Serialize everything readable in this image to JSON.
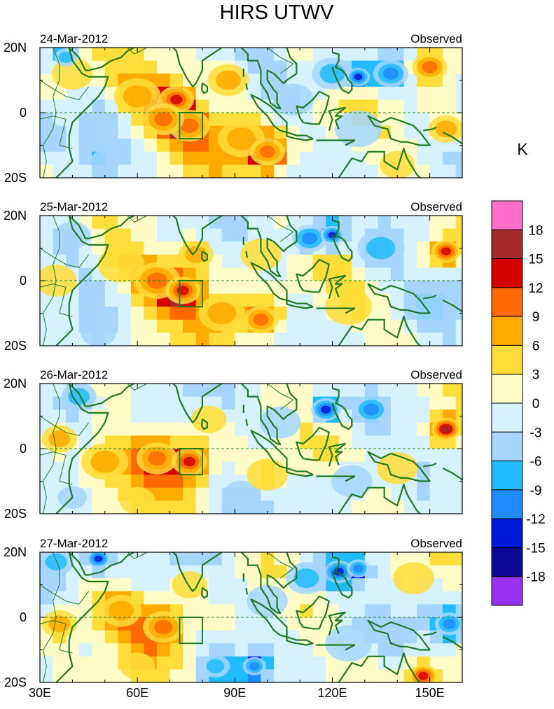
{
  "chart_data": {
    "type": "heatmap",
    "title": "HIRS UTWV",
    "colorbar": {
      "unit_label": "K",
      "levels": [
        "18",
        "15",
        "12",
        "9",
        "6",
        "3",
        "0",
        "-3",
        "-6",
        "-9",
        "-12",
        "-15",
        "-18"
      ],
      "colors": [
        "#ff6ec8",
        "#a52a2a",
        "#d40000",
        "#ff6a00",
        "#ffaa00",
        "#ffdd3a",
        "#fffcc8",
        "#d6f2ff",
        "#a6d6ff",
        "#22bbff",
        "#1e8cff",
        "#0018d8",
        "#0a0a96",
        "#9632f0"
      ]
    },
    "x_axis": {
      "range": [
        30,
        160
      ],
      "ticks": [
        30,
        60,
        90,
        120,
        150
      ],
      "tick_labels": [
        "30E",
        "60E",
        "90E",
        "120E",
        "150E"
      ]
    },
    "y_axis": {
      "range": [
        -20,
        20
      ],
      "ticks": [
        20,
        0,
        -20
      ],
      "tick_labels": [
        "20N",
        "0",
        "20S"
      ]
    },
    "box_region": {
      "lon": [
        73,
        80
      ],
      "lat": [
        -8,
        0
      ]
    },
    "panels": [
      {
        "date": "24-Mar-2012",
        "label": "Observed",
        "features": [
          {
            "lon": 30,
            "lat": -5,
            "v": -3,
            "r": 6
          },
          {
            "lon": 40,
            "lat": 12,
            "v": 4,
            "r": 7
          },
          {
            "lon": 38,
            "lat": 17,
            "v": -8,
            "r": 4
          },
          {
            "lon": 60,
            "lat": 5,
            "v": 7,
            "r": 8
          },
          {
            "lon": 72,
            "lat": 4,
            "v": 13,
            "r": 6
          },
          {
            "lon": 76,
            "lat": -4,
            "v": 11,
            "r": 7
          },
          {
            "lon": 68,
            "lat": -2,
            "v": 9,
            "r": 7
          },
          {
            "lon": 88,
            "lat": 10,
            "v": 6,
            "r": 7
          },
          {
            "lon": 92,
            "lat": -8,
            "v": 8,
            "r": 8
          },
          {
            "lon": 100,
            "lat": -14,
            "v": 16,
            "r": 3
          },
          {
            "lon": 100,
            "lat": -12,
            "v": 11,
            "r": 6
          },
          {
            "lon": 108,
            "lat": 4,
            "v": -2,
            "r": 7
          },
          {
            "lon": 120,
            "lat": 12,
            "v": -6,
            "r": 7
          },
          {
            "lon": 128,
            "lat": 11,
            "v": -12,
            "r": 4
          },
          {
            "lon": 138,
            "lat": 12,
            "v": -9,
            "r": 6
          },
          {
            "lon": 128,
            "lat": -5,
            "v": -2,
            "r": 8
          },
          {
            "lon": 150,
            "lat": 14,
            "v": 9,
            "r": 6
          },
          {
            "lon": 155,
            "lat": -5,
            "v": 6,
            "r": 6
          },
          {
            "lon": 50,
            "lat": -15,
            "v": -5,
            "r": 5
          },
          {
            "lon": 140,
            "lat": -16,
            "v": 1,
            "r": 6
          }
        ]
      },
      {
        "date": "25-Mar-2012",
        "label": "Observed",
        "features": [
          {
            "lon": 35,
            "lat": 0,
            "v": 2,
            "r": 7
          },
          {
            "lon": 40,
            "lat": 14,
            "v": -4,
            "r": 6
          },
          {
            "lon": 55,
            "lat": 5,
            "v": 4,
            "r": 8
          },
          {
            "lon": 66,
            "lat": 0,
            "v": 9,
            "r": 8
          },
          {
            "lon": 74,
            "lat": -3,
            "v": 12,
            "r": 6
          },
          {
            "lon": 78,
            "lat": 8,
            "v": 7,
            "r": 6
          },
          {
            "lon": 86,
            "lat": -10,
            "v": 6,
            "r": 8
          },
          {
            "lon": 98,
            "lat": -12,
            "v": 10,
            "r": 6
          },
          {
            "lon": 98,
            "lat": 8,
            "v": 2,
            "r": 7
          },
          {
            "lon": 113,
            "lat": 13,
            "v": -9,
            "r": 6
          },
          {
            "lon": 120,
            "lat": 14,
            "v": -14,
            "r": 4
          },
          {
            "lon": 135,
            "lat": 10,
            "v": -8,
            "r": 8
          },
          {
            "lon": 155,
            "lat": 9,
            "v": 14,
            "r": 5
          },
          {
            "lon": 125,
            "lat": -8,
            "v": 1,
            "r": 8
          },
          {
            "lon": 150,
            "lat": -8,
            "v": -3,
            "r": 7
          },
          {
            "lon": 48,
            "lat": -16,
            "v": -4,
            "r": 6
          }
        ]
      },
      {
        "date": "26-Mar-2012",
        "label": "Observed",
        "features": [
          {
            "lon": 36,
            "lat": 3,
            "v": 7,
            "r": 6
          },
          {
            "lon": 42,
            "lat": 16,
            "v": -8,
            "r": 6
          },
          {
            "lon": 50,
            "lat": -4,
            "v": 6,
            "r": 8
          },
          {
            "lon": 66,
            "lat": -3,
            "v": 11,
            "r": 7
          },
          {
            "lon": 76,
            "lat": -4,
            "v": 12,
            "r": 6
          },
          {
            "lon": 82,
            "lat": 9,
            "v": 4,
            "r": 6
          },
          {
            "lon": 92,
            "lat": -14,
            "v": -4,
            "r": 6
          },
          {
            "lon": 100,
            "lat": -8,
            "v": 5,
            "r": 7
          },
          {
            "lon": 104,
            "lat": 8,
            "v": -3,
            "r": 7
          },
          {
            "lon": 118,
            "lat": 12,
            "v": -12,
            "r": 5
          },
          {
            "lon": 132,
            "lat": 12,
            "v": -10,
            "r": 6
          },
          {
            "lon": 155,
            "lat": 6,
            "v": 16,
            "r": 5
          },
          {
            "lon": 140,
            "lat": -6,
            "v": 2,
            "r": 7
          },
          {
            "lon": 126,
            "lat": -10,
            "v": -4,
            "r": 7
          },
          {
            "lon": 60,
            "lat": -16,
            "v": 3,
            "r": 6
          },
          {
            "lon": 40,
            "lat": -15,
            "v": -3,
            "r": 5
          }
        ]
      },
      {
        "date": "27-Mar-2012",
        "label": "Observed",
        "features": [
          {
            "lon": 35,
            "lat": 17,
            "v": -6,
            "r": 6
          },
          {
            "lon": 48,
            "lat": 18,
            "v": -14,
            "r": 4
          },
          {
            "lon": 36,
            "lat": -2,
            "v": 8,
            "r": 6
          },
          {
            "lon": 55,
            "lat": 2,
            "v": 7,
            "r": 7
          },
          {
            "lon": 68,
            "lat": -3,
            "v": 10,
            "r": 7
          },
          {
            "lon": 76,
            "lat": 10,
            "v": 3,
            "r": 6
          },
          {
            "lon": 84,
            "lat": -15,
            "v": -6,
            "r": 5
          },
          {
            "lon": 96,
            "lat": -15,
            "v": -10,
            "r": 4
          },
          {
            "lon": 100,
            "lat": 5,
            "v": -2,
            "r": 7
          },
          {
            "lon": 112,
            "lat": 12,
            "v": -6,
            "r": 7
          },
          {
            "lon": 122,
            "lat": 14,
            "v": -14,
            "r": 5
          },
          {
            "lon": 128,
            "lat": 15,
            "v": -11,
            "r": 4
          },
          {
            "lon": 145,
            "lat": 12,
            "v": 3,
            "r": 7
          },
          {
            "lon": 156,
            "lat": -2,
            "v": -10,
            "r": 5
          },
          {
            "lon": 148,
            "lat": -18,
            "v": 13,
            "r": 5
          },
          {
            "lon": 125,
            "lat": -8,
            "v": -2,
            "r": 8
          },
          {
            "lon": 60,
            "lat": -15,
            "v": 5,
            "r": 6
          }
        ]
      }
    ]
  },
  "coast_lines": [
    {
      "name": "africa-east-coast",
      "pts": [
        [
          39,
          20
        ],
        [
          40,
          16
        ],
        [
          43,
          12
        ],
        [
          45,
          11
        ],
        [
          51,
          11
        ],
        [
          50,
          8
        ],
        [
          48,
          5
        ],
        [
          45,
          2
        ],
        [
          42,
          -1
        ],
        [
          40,
          -3
        ],
        [
          39,
          -7
        ],
        [
          39,
          -11
        ],
        [
          40,
          -15
        ],
        [
          37,
          -18
        ],
        [
          35,
          -20
        ]
      ]
    },
    {
      "name": "arabia-coast",
      "pts": [
        [
          39,
          20
        ],
        [
          42,
          17
        ],
        [
          44,
          13
        ],
        [
          45,
          13
        ],
        [
          49,
          14
        ],
        [
          52,
          16
        ],
        [
          55,
          17
        ],
        [
          57,
          19
        ],
        [
          59,
          20
        ]
      ]
    },
    {
      "name": "africa-border-a",
      "pts": [
        [
          34,
          20
        ],
        [
          36,
          15
        ],
        [
          36,
          10
        ],
        [
          34,
          5
        ],
        [
          35,
          0
        ],
        [
          34,
          -5
        ],
        [
          31,
          -10
        ],
        [
          32,
          -15
        ],
        [
          31,
          -20
        ]
      ]
    },
    {
      "name": "africa-border-b",
      "pts": [
        [
          30,
          10
        ],
        [
          33,
          8
        ],
        [
          38,
          5
        ],
        [
          42,
          4
        ],
        [
          45,
          8
        ]
      ]
    },
    {
      "name": "africa-border-c",
      "pts": [
        [
          30,
          -2
        ],
        [
          34,
          -1
        ],
        [
          38,
          -2
        ],
        [
          36,
          -10
        ],
        [
          40,
          -11
        ]
      ]
    },
    {
      "name": "india-coast",
      "pts": [
        [
          68,
          20
        ],
        [
          70,
          21
        ],
        [
          72,
          19
        ],
        [
          73,
          15
        ],
        [
          75,
          11
        ],
        [
          77,
          8
        ],
        [
          78,
          9
        ],
        [
          80,
          13
        ],
        [
          80,
          16
        ],
        [
          83,
          18
        ],
        [
          86,
          20
        ]
      ]
    },
    {
      "name": "sri-lanka",
      "closed": true,
      "pts": [
        [
          80,
          9
        ],
        [
          81.5,
          8
        ],
        [
          81.5,
          6.5
        ],
        [
          80.5,
          6
        ],
        [
          79.8,
          7
        ]
      ]
    },
    {
      "name": "myanmar-malay-coast",
      "pts": [
        [
          92,
          20
        ],
        [
          94,
          18
        ],
        [
          94,
          16
        ],
        [
          97,
          16
        ],
        [
          98,
          13
        ],
        [
          98,
          9
        ],
        [
          100,
          6
        ],
        [
          101,
          3
        ],
        [
          103,
          1.5
        ],
        [
          104,
          1.3
        ],
        [
          103,
          3
        ],
        [
          103,
          6
        ],
        [
          102,
          7
        ],
        [
          100,
          10
        ],
        [
          100,
          13
        ],
        [
          102,
          12
        ],
        [
          105,
          9
        ],
        [
          106,
          10
        ],
        [
          109,
          12
        ],
        [
          109,
          15
        ],
        [
          107,
          17
        ],
        [
          106,
          20
        ]
      ]
    },
    {
      "name": "sumatra",
      "closed": true,
      "pts": [
        [
          95,
          5.5
        ],
        [
          98,
          4
        ],
        [
          101,
          2
        ],
        [
          104,
          -1
        ],
        [
          106,
          -3
        ],
        [
          106,
          -6
        ],
        [
          104,
          -5.5
        ],
        [
          102,
          -4
        ],
        [
          100,
          -1
        ],
        [
          97,
          2
        ]
      ]
    },
    {
      "name": "java",
      "closed": true,
      "pts": [
        [
          106,
          -6
        ],
        [
          109,
          -7
        ],
        [
          112,
          -7
        ],
        [
          114,
          -8
        ],
        [
          112,
          -8.5
        ],
        [
          108,
          -7.8
        ],
        [
          106,
          -7.2
        ]
      ]
    },
    {
      "name": "borneo",
      "closed": true,
      "pts": [
        [
          109,
          2
        ],
        [
          111,
          1.5
        ],
        [
          114,
          4
        ],
        [
          116,
          6.5
        ],
        [
          119,
          5
        ],
        [
          118,
          1
        ],
        [
          117,
          -1
        ],
        [
          116,
          -3.5
        ],
        [
          114,
          -3.5
        ],
        [
          111,
          -3
        ],
        [
          110,
          -1.5
        ]
      ]
    },
    {
      "name": "sulawesi",
      "pts": [
        [
          119,
          -5.5
        ],
        [
          120,
          -2
        ],
        [
          119,
          0.5
        ],
        [
          121,
          1
        ],
        [
          124,
          1.5
        ],
        [
          122,
          0
        ],
        [
          121,
          -1
        ],
        [
          123,
          -1
        ],
        [
          121,
          -2.5
        ],
        [
          122,
          -5
        ]
      ]
    },
    {
      "name": "philippines",
      "pts": [
        [
          120,
          18.5
        ],
        [
          122,
          18
        ],
        [
          122,
          16
        ],
        [
          121,
          14
        ],
        [
          123,
          13
        ],
        [
          124,
          12
        ],
        [
          125,
          10
        ],
        [
          126,
          9
        ],
        [
          126,
          7
        ],
        [
          125,
          6
        ],
        [
          123,
          7
        ],
        [
          122,
          9
        ],
        [
          121,
          11
        ],
        [
          120,
          14
        ]
      ]
    },
    {
      "name": "new-guinea",
      "closed": true,
      "pts": [
        [
          131,
          -1
        ],
        [
          135,
          -3
        ],
        [
          138,
          -1.5
        ],
        [
          141,
          -2.5
        ],
        [
          145,
          -4
        ],
        [
          147,
          -6
        ],
        [
          150,
          -10
        ],
        [
          147,
          -10
        ],
        [
          143,
          -9
        ],
        [
          141,
          -9
        ],
        [
          138,
          -8
        ],
        [
          137,
          -5
        ],
        [
          133,
          -4
        ]
      ]
    },
    {
      "name": "australia-north",
      "pts": [
        [
          122,
          -20
        ],
        [
          126,
          -14
        ],
        [
          129,
          -15
        ],
        [
          131,
          -12
        ],
        [
          136,
          -12
        ],
        [
          136,
          -15
        ],
        [
          140,
          -17.5
        ],
        [
          142,
          -11
        ],
        [
          143,
          -14
        ],
        [
          146,
          -19
        ],
        [
          147,
          -20
        ]
      ]
    },
    {
      "name": "lesser-sunda",
      "pts": [
        [
          115,
          -8.5
        ],
        [
          119,
          -8.5
        ],
        [
          123,
          -8.5
        ],
        [
          127,
          -8.5
        ]
      ]
    },
    {
      "name": "timor",
      "pts": [
        [
          124,
          -10
        ],
        [
          127,
          -8.5
        ]
      ]
    },
    {
      "name": "solomon",
      "pts": [
        [
          154,
          -6
        ],
        [
          157,
          -7.5
        ],
        [
          160,
          -9.5
        ]
      ]
    },
    {
      "name": "new-britain",
      "pts": [
        [
          148,
          -5.5
        ],
        [
          151,
          -5
        ],
        [
          152,
          -4.5
        ]
      ]
    },
    {
      "name": "andaman",
      "pts": [
        [
          92.7,
          13.5
        ],
        [
          92.7,
          11
        ]
      ]
    },
    {
      "name": "nicobar",
      "pts": [
        [
          93.5,
          9
        ],
        [
          93.8,
          7
        ]
      ]
    },
    {
      "name": "sea-border-a",
      "pts": [
        [
          100,
          20
        ],
        [
          104,
          17
        ],
        [
          108,
          15
        ],
        [
          104,
          12
        ]
      ]
    },
    {
      "name": "sea-border-b",
      "pts": [
        [
          57,
          20
        ],
        [
          59,
          18
        ],
        [
          63,
          20
        ]
      ]
    }
  ]
}
